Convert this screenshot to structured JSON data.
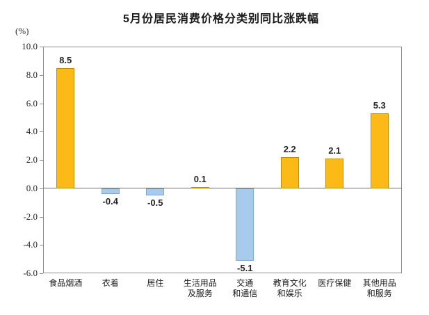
{
  "chart_data": {
    "type": "bar",
    "title": "5月份居民消费价格分类别同比涨跌幅",
    "y_unit": "(%)",
    "categories": [
      "食品烟酒",
      "衣着",
      "居住",
      "生活用品\n及服务",
      "交通\n和通信",
      "教育文化\n和娱乐",
      "医疗保健",
      "其他用品\n和服务"
    ],
    "values": [
      8.5,
      -0.4,
      -0.5,
      0.1,
      -5.1,
      2.2,
      2.1,
      5.3
    ],
    "value_labels": [
      "8.5",
      "-0.4",
      "-0.5",
      "0.1",
      "-5.1",
      "2.2",
      "2.1",
      "5.3"
    ],
    "ylabel": "",
    "xlabel": "",
    "ylim": [
      -6.0,
      10.0
    ],
    "ytick_step": 2.0,
    "ytick_labels": [
      "10.0",
      "8.0",
      "6.0",
      "4.0",
      "2.0",
      "0.0",
      "-2.0",
      "-4.0",
      "-6.0"
    ],
    "grid": false,
    "legend": false,
    "positive_color": "#fbba16",
    "positive_border_color": "#bf8f00",
    "negative_color": "#a6cbec",
    "negative_border_color": "#7ea6d6"
  }
}
